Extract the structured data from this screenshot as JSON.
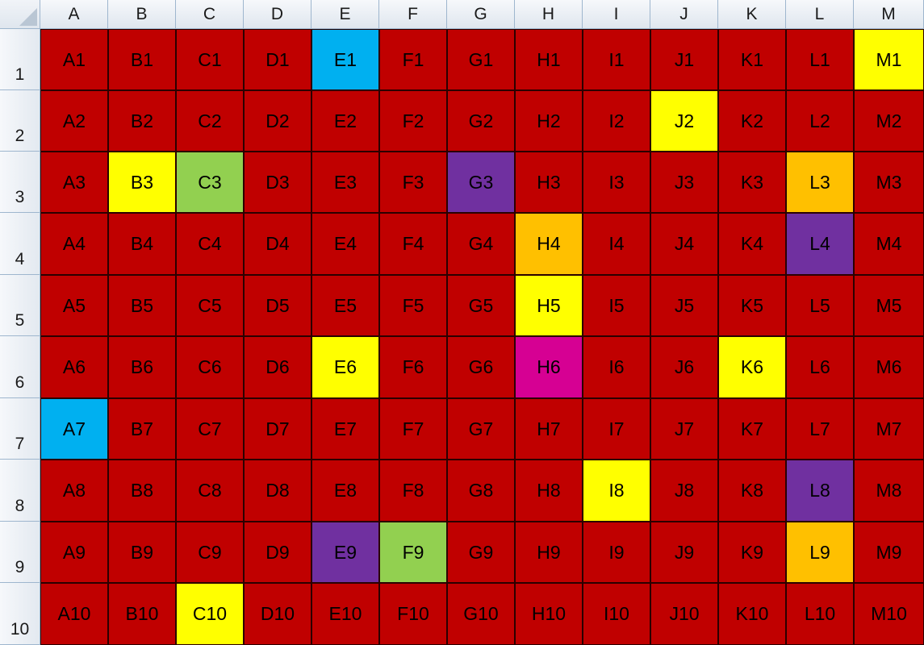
{
  "columns": [
    "A",
    "B",
    "C",
    "D",
    "E",
    "F",
    "G",
    "H",
    "I",
    "J",
    "K",
    "L",
    "M"
  ],
  "rows": [
    "1",
    "2",
    "3",
    "4",
    "5",
    "6",
    "7",
    "8",
    "9",
    "10"
  ],
  "colors": {
    "red": "#c00000",
    "blue": "#00b0f0",
    "yellow": "#ffff00",
    "green": "#92d050",
    "orange": "#ffc000",
    "purple": "#7030a0",
    "magenta": "#d60093"
  },
  "default_fill": "red",
  "highlighted_cells": {
    "E1": "blue",
    "M1": "yellow",
    "J2": "yellow",
    "B3": "yellow",
    "C3": "green",
    "G3": "purple",
    "L3": "orange",
    "H4": "orange",
    "L4": "purple",
    "H5": "yellow",
    "E6": "yellow",
    "H6": "magenta",
    "K6": "yellow",
    "A7": "blue",
    "I8": "yellow",
    "L8": "purple",
    "E9": "purple",
    "F9": "green",
    "L9": "orange",
    "C10": "yellow"
  },
  "select_all_icon": "select-all-triangle-icon"
}
